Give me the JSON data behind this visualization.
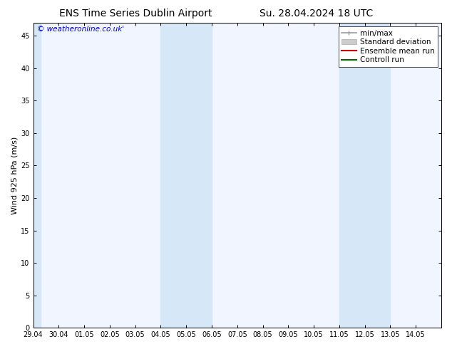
{
  "title_left": "ENS Time Series Dublin Airport",
  "title_right": "Su. 28.04.2024 18 UTC",
  "ylabel": "Wind 925 hPa (m/s)",
  "watermark": "© weatheronline.co.uk'",
  "xlim_start": 0,
  "xlim_end": 16,
  "ylim_min": 0,
  "ylim_max": 47,
  "yticks": [
    0,
    5,
    10,
    15,
    20,
    25,
    30,
    35,
    40,
    45
  ],
  "xtick_labels": [
    "29.04",
    "30.04",
    "01.05",
    "02.05",
    "03.05",
    "04.05",
    "05.05",
    "06.05",
    "07.05",
    "08.05",
    "09.05",
    "10.05",
    "11.05",
    "12.05",
    "13.05",
    "14.05"
  ],
  "shaded_bands": [
    {
      "xmin": 5,
      "xmax": 7
    },
    {
      "xmin": 12,
      "xmax": 14
    }
  ],
  "left_edge_band": {
    "xmin": 0,
    "xmax": 0.3
  },
  "plot_bg_color": "#f0f5ff",
  "background_color": "#ffffff",
  "shade_color": "#d6e8f8",
  "title_fontsize": 10,
  "tick_fontsize": 7,
  "ylabel_fontsize": 8,
  "watermark_fontsize": 7.5,
  "watermark_color": "#0000cc",
  "legend_fontsize": 7.5,
  "spine_color": "#000000"
}
